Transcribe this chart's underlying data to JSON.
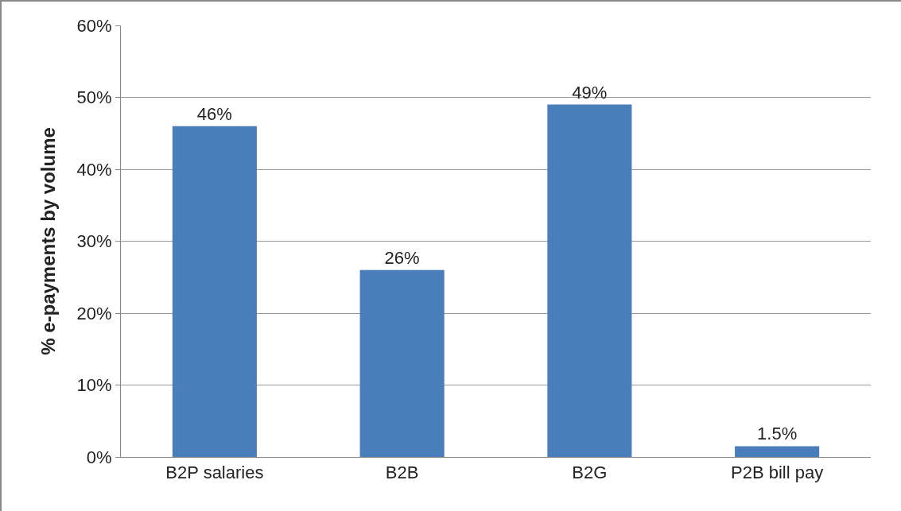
{
  "chart_data": {
    "type": "bar",
    "ylabel": "% e-payments by volume",
    "categories": [
      "B2P salaries",
      "B2B",
      "B2G",
      "P2B bill pay"
    ],
    "values": [
      46,
      26,
      49,
      1.5
    ],
    "value_labels": [
      "46%",
      "26%",
      "49%",
      "1.5%"
    ],
    "color": "#4a7ebb",
    "ylim": [
      0,
      60
    ],
    "yticks": [
      {
        "value": 0,
        "label": "0%"
      },
      {
        "value": 10,
        "label": "10%"
      },
      {
        "value": 20,
        "label": "20%"
      },
      {
        "value": 30,
        "label": "30%"
      },
      {
        "value": 40,
        "label": "40%"
      },
      {
        "value": 50,
        "label": "50%"
      },
      {
        "value": 60,
        "label": "60%"
      }
    ],
    "grid": "y",
    "legend": false
  }
}
